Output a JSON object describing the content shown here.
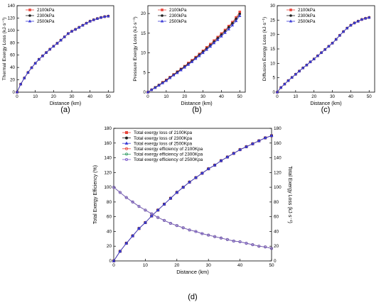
{
  "chart_data": [
    {
      "type": "line",
      "panel_label": "(a)",
      "xlabel": "Distance (km)",
      "ylabel": "Thermal Exergy Loss (kJ·s⁻¹)",
      "xlim": [
        0,
        53
      ],
      "ylim": [
        0,
        140
      ],
      "xticks": [
        0,
        10,
        20,
        30,
        40,
        50
      ],
      "yticks": [
        0,
        20,
        40,
        60,
        80,
        100,
        120,
        140
      ],
      "legend": "top-left",
      "series": [
        {
          "name": "2100kPa",
          "color": "#e8443a",
          "marker": "square",
          "x": [
            0,
            2,
            4,
            6,
            8,
            10,
            12,
            14,
            16,
            18,
            20,
            22,
            24,
            26,
            28,
            30,
            32,
            34,
            36,
            38,
            40,
            42,
            44,
            46,
            48,
            50
          ],
          "y": [
            0,
            12.9,
            22.9,
            31.8,
            39.6,
            46.7,
            53.1,
            58.7,
            64.1,
            69.4,
            74.3,
            79.1,
            84.1,
            89.5,
            94.8,
            98.5,
            101.6,
            104.9,
            108.2,
            111.6,
            114.8,
            117.1,
            119.1,
            120.8,
            122.2,
            123.0
          ]
        },
        {
          "name": "2300kPa",
          "color": "#222222",
          "marker": "circle",
          "x": [
            0,
            2,
            4,
            6,
            8,
            10,
            12,
            14,
            16,
            18,
            20,
            22,
            24,
            26,
            28,
            30,
            32,
            34,
            36,
            38,
            40,
            42,
            44,
            46,
            48,
            50
          ],
          "y": [
            0,
            12.9,
            22.9,
            31.8,
            39.6,
            46.7,
            53.1,
            58.7,
            64.1,
            69.4,
            74.3,
            79.1,
            84.1,
            89.5,
            94.8,
            98.5,
            101.6,
            104.9,
            108.2,
            111.6,
            114.8,
            117.1,
            119.1,
            120.8,
            122.2,
            123.0
          ]
        },
        {
          "name": "2500kPa",
          "color": "#3b3bd6",
          "marker": "triangle",
          "x": [
            0,
            2,
            4,
            6,
            8,
            10,
            12,
            14,
            16,
            18,
            20,
            22,
            24,
            26,
            28,
            30,
            32,
            34,
            36,
            38,
            40,
            42,
            44,
            46,
            48,
            50
          ],
          "y": [
            0,
            12.9,
            22.9,
            31.8,
            39.6,
            46.7,
            53.1,
            58.7,
            64.1,
            69.4,
            74.3,
            79.1,
            84.1,
            89.5,
            94.8,
            98.5,
            101.6,
            104.9,
            108.2,
            111.6,
            114.8,
            117.1,
            119.1,
            120.8,
            122.2,
            123.0
          ]
        }
      ]
    },
    {
      "type": "line",
      "panel_label": "(b)",
      "xlabel": "Distance (km)",
      "ylabel": "Pressure Exergy Loss (kJ·s⁻¹)",
      "xlim": [
        0,
        53
      ],
      "ylim": [
        0,
        22
      ],
      "xticks": [
        0,
        10,
        20,
        30,
        40,
        50
      ],
      "yticks": [
        0,
        5,
        10,
        15,
        20
      ],
      "legend": "top-left",
      "series": [
        {
          "name": "2100kPa",
          "color": "#e8443a",
          "marker": "square",
          "x": [
            0,
            2,
            4,
            6,
            8,
            10,
            12,
            14,
            16,
            18,
            20,
            22,
            24,
            26,
            28,
            30,
            32,
            34,
            36,
            38,
            40,
            42,
            44,
            46,
            48,
            50
          ],
          "y": [
            0,
            0.6,
            1.2,
            1.8,
            2.5,
            3.1,
            3.8,
            4.5,
            5.2,
            5.9,
            6.6,
            7.4,
            8.1,
            8.9,
            9.7,
            10.5,
            11.4,
            12.2,
            13.1,
            14.0,
            14.9,
            15.8,
            16.8,
            17.8,
            19.0,
            20.4
          ]
        },
        {
          "name": "2300kPa",
          "color": "#222222",
          "marker": "circle",
          "x": [
            0,
            2,
            4,
            6,
            8,
            10,
            12,
            14,
            16,
            18,
            20,
            22,
            24,
            26,
            28,
            30,
            32,
            34,
            36,
            38,
            40,
            42,
            44,
            46,
            48,
            50
          ],
          "y": [
            0,
            0.6,
            1.2,
            1.8,
            2.4,
            3.0,
            3.7,
            4.4,
            5.1,
            5.8,
            6.5,
            7.2,
            7.9,
            8.7,
            9.5,
            10.3,
            11.1,
            11.9,
            12.8,
            13.7,
            14.6,
            15.5,
            16.5,
            17.5,
            18.6,
            19.9
          ]
        },
        {
          "name": "2500kPa",
          "color": "#3b3bd6",
          "marker": "triangle",
          "x": [
            0,
            2,
            4,
            6,
            8,
            10,
            12,
            14,
            16,
            18,
            20,
            22,
            24,
            26,
            28,
            30,
            32,
            34,
            36,
            38,
            40,
            42,
            44,
            46,
            48,
            50
          ],
          "y": [
            0,
            0.6,
            1.1,
            1.7,
            2.3,
            2.9,
            3.6,
            4.3,
            4.9,
            5.6,
            6.3,
            7.0,
            7.7,
            8.5,
            9.2,
            10.0,
            10.8,
            11.6,
            12.5,
            13.3,
            14.2,
            15.1,
            16.0,
            17.0,
            18.1,
            19.4
          ]
        }
      ]
    },
    {
      "type": "line",
      "panel_label": "(c)",
      "xlabel": "Distance (km)",
      "ylabel": "Diffusion Exergy Loss (kJ·s⁻¹)",
      "xlim": [
        0,
        53
      ],
      "ylim": [
        0,
        30
      ],
      "xticks": [
        0,
        10,
        20,
        30,
        40,
        50
      ],
      "yticks": [
        0,
        5,
        10,
        15,
        20,
        25,
        30
      ],
      "legend": "top-left",
      "series": [
        {
          "name": "2100kPa",
          "color": "#e8443a",
          "marker": "square",
          "x": [
            0,
            2,
            4,
            6,
            8,
            10,
            12,
            14,
            16,
            18,
            20,
            22,
            24,
            26,
            28,
            30,
            32,
            34,
            36,
            38,
            40,
            42,
            44,
            46,
            48,
            50
          ],
          "y": [
            0,
            1.6,
            2.8,
            4.0,
            5.1,
            6.2,
            7.3,
            8.4,
            9.4,
            10.5,
            11.5,
            12.6,
            13.7,
            14.8,
            15.9,
            17.0,
            18.3,
            19.7,
            21.0,
            22.2,
            23.2,
            24.0,
            24.6,
            25.2,
            25.6,
            25.9
          ]
        },
        {
          "name": "2300kPa",
          "color": "#222222",
          "marker": "circle",
          "x": [
            0,
            2,
            4,
            6,
            8,
            10,
            12,
            14,
            16,
            18,
            20,
            22,
            24,
            26,
            28,
            30,
            32,
            34,
            36,
            38,
            40,
            42,
            44,
            46,
            48,
            50
          ],
          "y": [
            0,
            1.6,
            2.8,
            4.0,
            5.1,
            6.2,
            7.3,
            8.4,
            9.4,
            10.5,
            11.5,
            12.6,
            13.7,
            14.8,
            15.9,
            17.0,
            18.3,
            19.7,
            21.0,
            22.2,
            23.2,
            24.0,
            24.6,
            25.2,
            25.6,
            25.9
          ]
        },
        {
          "name": "2500kPa",
          "color": "#3b3bd6",
          "marker": "triangle",
          "x": [
            0,
            2,
            4,
            6,
            8,
            10,
            12,
            14,
            16,
            18,
            20,
            22,
            24,
            26,
            28,
            30,
            32,
            34,
            36,
            38,
            40,
            42,
            44,
            46,
            48,
            50
          ],
          "y": [
            0,
            1.6,
            2.8,
            4.0,
            5.1,
            6.2,
            7.3,
            8.4,
            9.4,
            10.5,
            11.5,
            12.6,
            13.7,
            14.8,
            15.9,
            17.0,
            18.3,
            19.7,
            21.0,
            22.2,
            23.2,
            24.0,
            24.6,
            25.2,
            25.6,
            25.9
          ]
        }
      ]
    },
    {
      "type": "line",
      "panel_label": "(d)",
      "xlabel": "Distance (km)",
      "ylabel": "Total Exergy Efficiency (%)",
      "y2label": "Total Exergy Loss (kJ·s⁻¹)",
      "xlim": [
        0,
        50
      ],
      "ylim": [
        0,
        180
      ],
      "y2lim": [
        0,
        180
      ],
      "xticks": [
        0,
        10,
        20,
        30,
        40,
        50
      ],
      "yticks": [
        0,
        20,
        40,
        60,
        80,
        100,
        120,
        140,
        160,
        180
      ],
      "y2ticks": [
        0,
        20,
        40,
        60,
        80,
        100,
        120,
        140,
        160,
        180
      ],
      "legend": "top-left",
      "series": [
        {
          "name": "Total exergy loss of 2100Kpa",
          "color": "#e8443a",
          "marker": "square",
          "filled": true,
          "axis": "y2",
          "x": [
            0,
            2,
            4,
            6,
            8,
            10,
            12,
            14,
            16,
            18,
            20,
            22,
            24,
            26,
            28,
            30,
            32,
            34,
            36,
            38,
            40,
            42,
            44,
            46,
            48,
            50
          ],
          "y": [
            0,
            13,
            24,
            34,
            44,
            52,
            61,
            69,
            77,
            85,
            93,
            100,
            107,
            113,
            119,
            125,
            130,
            136,
            141,
            146,
            151,
            155,
            159,
            163,
            167,
            170
          ]
        },
        {
          "name": "Total exergy loss of 2300Kpa",
          "color": "#222222",
          "marker": "circle",
          "filled": true,
          "axis": "y2",
          "x": [
            0,
            2,
            4,
            6,
            8,
            10,
            12,
            14,
            16,
            18,
            20,
            22,
            24,
            26,
            28,
            30,
            32,
            34,
            36,
            38,
            40,
            42,
            44,
            46,
            48,
            50
          ],
          "y": [
            0,
            13,
            24,
            34,
            44,
            52,
            61,
            69,
            77,
            85,
            93,
            100,
            107,
            113,
            119,
            125,
            130,
            136,
            141,
            146,
            151,
            155,
            159,
            163,
            167,
            170
          ]
        },
        {
          "name": "Total exergy loss of 2500Kpa",
          "color": "#3b3bd6",
          "marker": "triangle",
          "filled": true,
          "axis": "y2",
          "x": [
            0,
            2,
            4,
            6,
            8,
            10,
            12,
            14,
            16,
            18,
            20,
            22,
            24,
            26,
            28,
            30,
            32,
            34,
            36,
            38,
            40,
            42,
            44,
            46,
            48,
            50
          ],
          "y": [
            0,
            13,
            24,
            34,
            44,
            52,
            61,
            69,
            77,
            85,
            93,
            100,
            107,
            113,
            119,
            125,
            130,
            136,
            141,
            146,
            151,
            155,
            159,
            163,
            167,
            170
          ]
        },
        {
          "name": "Total exergy efficiency of 2100Kpa",
          "color": "#e8443a",
          "marker": "circle",
          "filled": false,
          "axis": "y",
          "x": [
            0,
            2,
            4,
            6,
            8,
            10,
            12,
            14,
            16,
            18,
            20,
            22,
            24,
            26,
            28,
            30,
            32,
            34,
            36,
            38,
            40,
            42,
            44,
            46,
            48,
            50
          ],
          "y": [
            100,
            93,
            86,
            80,
            74,
            69,
            64,
            59,
            55,
            51,
            48,
            45,
            42,
            40,
            37,
            35,
            33,
            31,
            29,
            27,
            26,
            24,
            22,
            20,
            19,
            17
          ]
        },
        {
          "name": "Total exergy efficiency of 2300Kpa",
          "color": "#3aa06a",
          "marker": "circle",
          "filled": false,
          "axis": "y",
          "x": [
            0,
            2,
            4,
            6,
            8,
            10,
            12,
            14,
            16,
            18,
            20,
            22,
            24,
            26,
            28,
            30,
            32,
            34,
            36,
            38,
            40,
            42,
            44,
            46,
            48,
            50
          ],
          "y": [
            100,
            93,
            86,
            80,
            74,
            69,
            64,
            59,
            55,
            51,
            48,
            45,
            42,
            40,
            37,
            35,
            33,
            31,
            29,
            27,
            26,
            24,
            22,
            20,
            19,
            17
          ]
        },
        {
          "name": "Total exergy efficiency of 2500Kpa",
          "color": "#7b58c8",
          "marker": "circle",
          "filled": false,
          "axis": "y",
          "x": [
            0,
            2,
            4,
            6,
            8,
            10,
            12,
            14,
            16,
            18,
            20,
            22,
            24,
            26,
            28,
            30,
            32,
            34,
            36,
            38,
            40,
            42,
            44,
            46,
            48,
            50
          ],
          "y": [
            100,
            93,
            86,
            80,
            74,
            69,
            64,
            59,
            55,
            51,
            48,
            45,
            42,
            40,
            37,
            35,
            33,
            31,
            29,
            27,
            26,
            24,
            22,
            20,
            19,
            17
          ]
        }
      ]
    }
  ]
}
